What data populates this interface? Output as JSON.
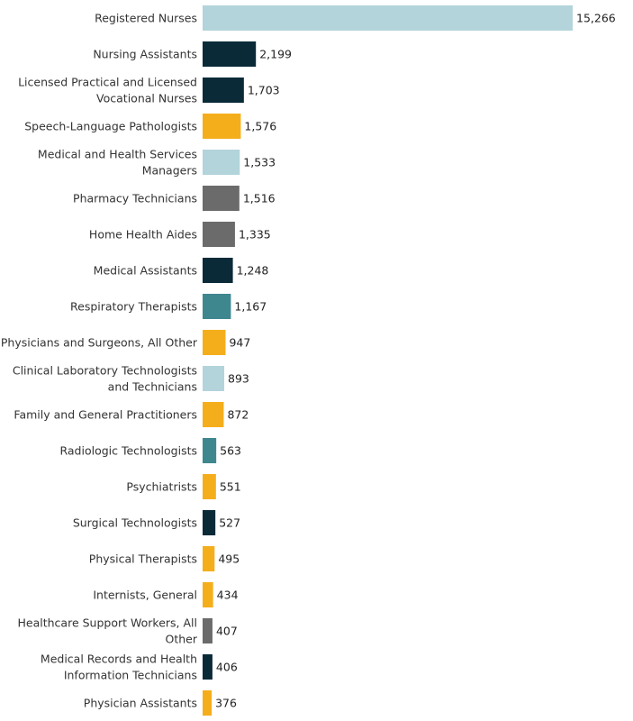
{
  "chart_data": {
    "type": "bar",
    "orientation": "horizontal",
    "title": "",
    "xlabel": "",
    "ylabel": "",
    "xlim": [
      0,
      15266
    ],
    "grid": false,
    "legend": "none",
    "categories": [
      "Registered Nurses",
      "Nursing Assistants",
      "Licensed Practical and Licensed Vocational Nurses",
      "Speech-Language Pathologists",
      "Medical and Health Services Managers",
      "Pharmacy Technicians",
      "Home Health Aides",
      "Medical Assistants",
      "Respiratory Therapists",
      "Physicians and Surgeons, All Other",
      "Clinical Laboratory Technologists and Technicians",
      "Family and General Practitioners",
      "Radiologic Technologists",
      "Psychiatrists",
      "Surgical Technologists",
      "Physical Therapists",
      "Internists, General",
      "Healthcare Support Workers, All Other",
      "Medical Records and Health Information Technicians",
      "Physician Assistants"
    ],
    "label_lines": [
      [
        "Registered Nurses"
      ],
      [
        "Nursing Assistants"
      ],
      [
        "Licensed Practical and Licensed",
        "Vocational Nurses"
      ],
      [
        "Speech-Language Pathologists"
      ],
      [
        "Medical and Health Services",
        "Managers"
      ],
      [
        "Pharmacy Technicians"
      ],
      [
        "Home Health Aides"
      ],
      [
        "Medical Assistants"
      ],
      [
        "Respiratory Therapists"
      ],
      [
        "Physicians and Surgeons, All Other"
      ],
      [
        "Clinical Laboratory Technologists",
        "and Technicians"
      ],
      [
        "Family and General Practitioners"
      ],
      [
        "Radiologic Technologists"
      ],
      [
        "Psychiatrists"
      ],
      [
        "Surgical Technologists"
      ],
      [
        "Physical Therapists"
      ],
      [
        "Internists, General"
      ],
      [
        "Healthcare Support Workers, All",
        "Other"
      ],
      [
        "Medical Records and Health",
        "Information Technicians"
      ],
      [
        "Physician Assistants"
      ]
    ],
    "values": [
      15266,
      2199,
      1703,
      1576,
      1533,
      1516,
      1335,
      1248,
      1167,
      947,
      893,
      872,
      563,
      551,
      527,
      495,
      434,
      407,
      406,
      376
    ],
    "value_labels": [
      "15,266",
      "2,199",
      "1,703",
      "1,576",
      "1,533",
      "1,516",
      "1,335",
      "1,248",
      "1,167",
      "947",
      "893",
      "872",
      "563",
      "551",
      "527",
      "495",
      "434",
      "407",
      "406",
      "376"
    ],
    "bar_colors": [
      "#b3d4db",
      "#0a2a38",
      "#0a2a38",
      "#f5ae1b",
      "#b3d4db",
      "#6b6b6b",
      "#6b6b6b",
      "#0a2a38",
      "#3f878f",
      "#f5ae1b",
      "#b3d4db",
      "#f5ae1b",
      "#3f878f",
      "#f5ae1b",
      "#0a2a38",
      "#f5ae1b",
      "#f5ae1b",
      "#6b6b6b",
      "#0a2a38",
      "#f5ae1b"
    ]
  }
}
